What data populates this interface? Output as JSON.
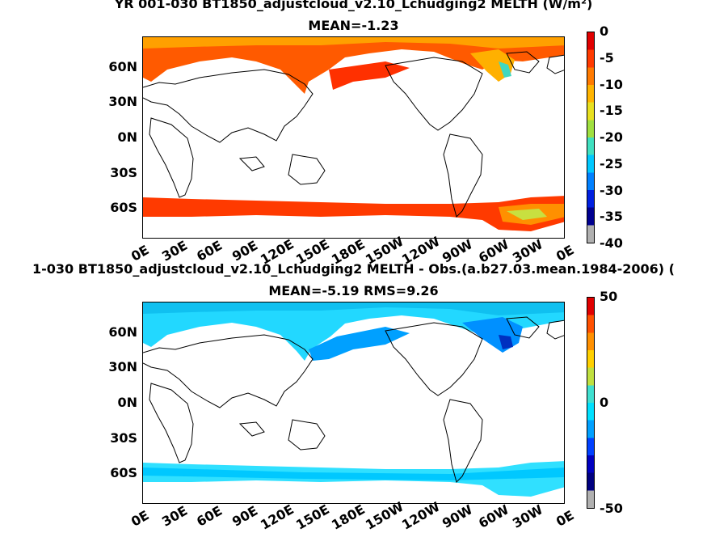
{
  "panels": [
    {
      "title_line1": "YR 001-030 BT1850_adjustcloud_v2.10_Lchudging2  MELTH (W/m²)",
      "title_line2": "MEAN=-1.23",
      "colorbar_ticks": [
        "0",
        "-5",
        "-10",
        "-15",
        "-20",
        "-25",
        "-30",
        "-35",
        "-40"
      ],
      "colors": [
        "#e00000",
        "#ff3a00",
        "#ff7a00",
        "#ffb400",
        "#e8e020",
        "#a0e040",
        "#40e0c0",
        "#00c8ff",
        "#0080ff",
        "#0020e0",
        "#000090",
        "#b0b0b0"
      ]
    },
    {
      "title_line1": "1-030 BT1850_adjustcloud_v2.10_Lchudging2 MELTH - Obs.(a.b27.03.mean.1984-2006) (",
      "title_line2": "MEAN=-5.19 RMS=9.26",
      "colorbar_ticks": [
        "50",
        "0",
        "-50"
      ],
      "colors": [
        "#e00000",
        "#ff5000",
        "#ff9000",
        "#ffd000",
        "#c0e040",
        "#40e0d0",
        "#00e0ff",
        "#00a0ff",
        "#0040ff",
        "#0000c0",
        "#000080",
        "#b0b0b0"
      ]
    }
  ],
  "lat_labels": [
    "60N",
    "30N",
    "0N",
    "30S",
    "60S"
  ],
  "lon_labels": [
    "0E",
    "30E",
    "60E",
    "90E",
    "120E",
    "150E",
    "180E",
    "150W",
    "120W",
    "90W",
    "60W",
    "30W",
    "0E"
  ]
}
